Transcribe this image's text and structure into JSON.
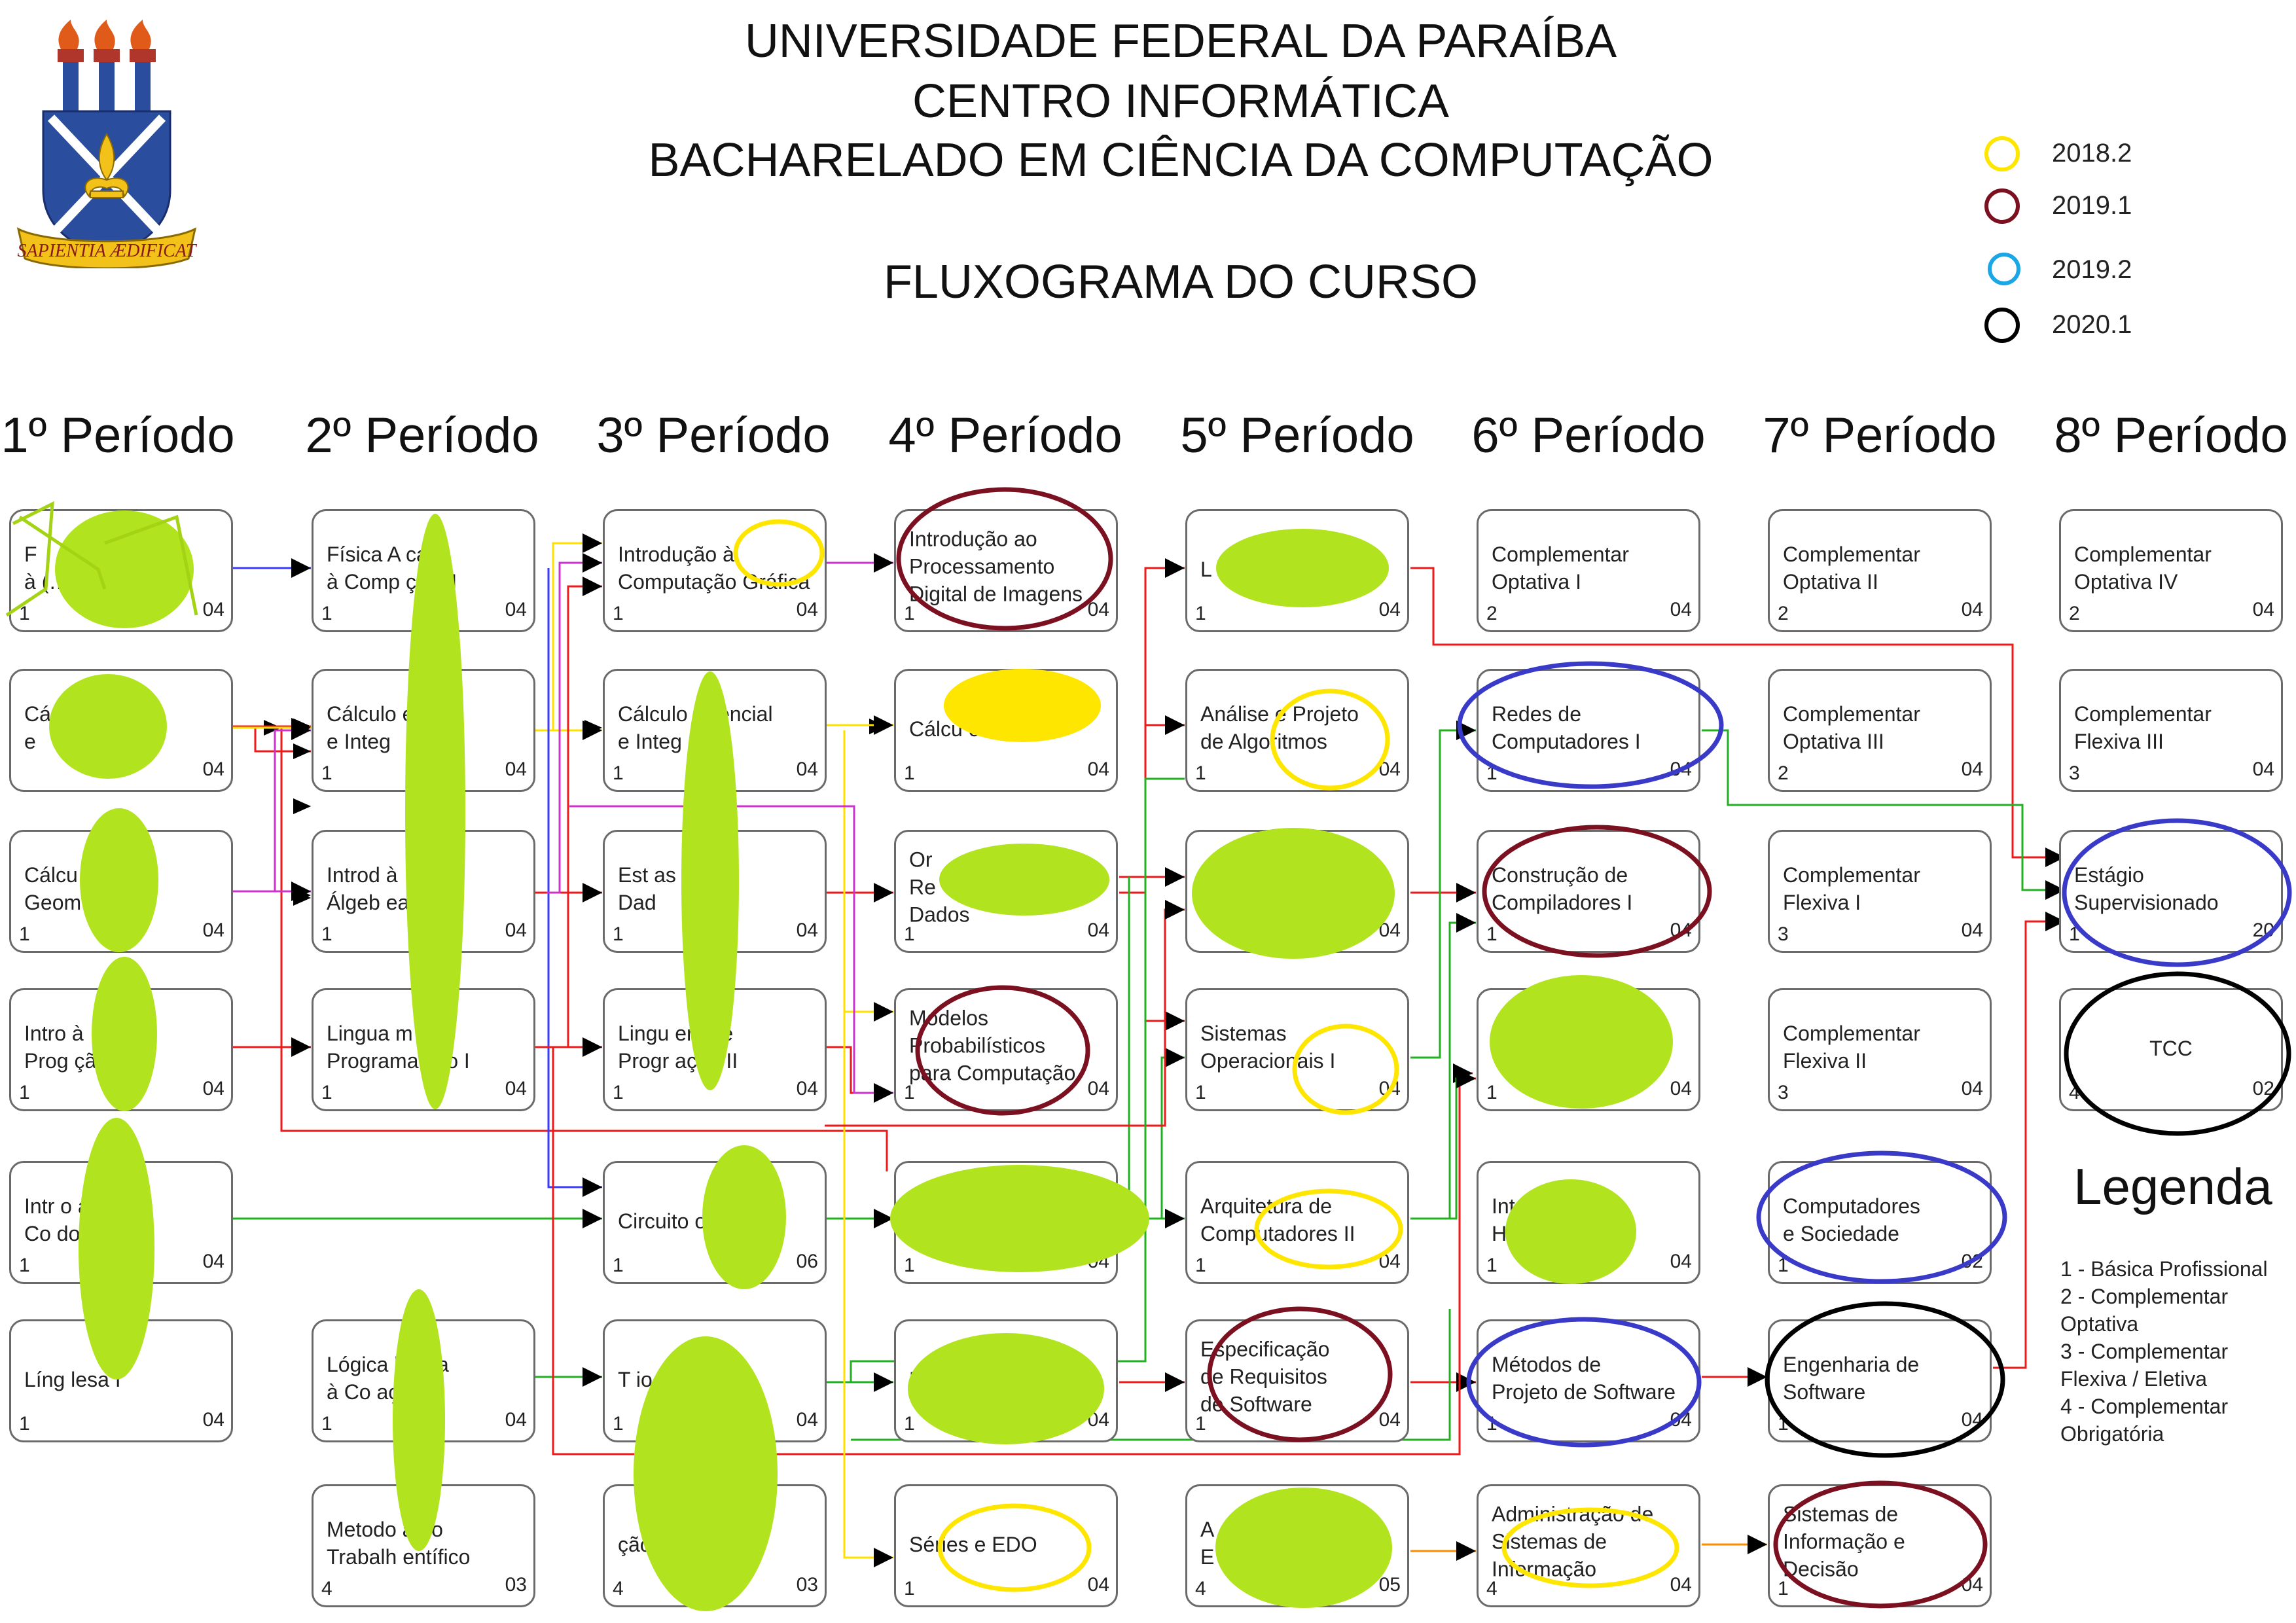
{
  "header": {
    "university": "UNIVERSIDADE FEDERAL DA PARAÍBA",
    "center": "CENTRO INFORMÁTICA",
    "course": "BACHARELADO EM CIÊNCIA DA COMPUTAÇÃO",
    "title": "FLUXOGRAMA DO CURSO",
    "seal_text": "SAPIENTIA ÆDIFICAT"
  },
  "periods": [
    "1º Período",
    "2º Período",
    "3º Período",
    "4º Período",
    "5º Período",
    "6º Período",
    "7º Período",
    "8º Período"
  ],
  "year_legend": [
    {
      "year": "2018.2",
      "color": "#ffe600"
    },
    {
      "year": "2019.1",
      "color": "#7a1020"
    },
    {
      "year": "2019.2",
      "color": "#1ba6e6"
    },
    {
      "year": "2020.1",
      "color": "#000000"
    }
  ],
  "course_boxes": {
    "p1": [
      {
        "name": "F\nà (…) I",
        "type": "1",
        "credits": "04"
      },
      {
        "name": "Cá      encial\ne",
        "type": "",
        "credits": "04"
      },
      {
        "name": "Cálcu    ial e\nGeom    nalítica",
        "type": "1",
        "credits": "04"
      },
      {
        "name": "Intro      à\nProg       ção",
        "type": "1",
        "credits": "04"
      },
      {
        "name": "Intr       o ao\nCo       dor I",
        "type": "1",
        "credits": "04"
      },
      {
        "name": "Líng      lesa I",
        "type": "1",
        "credits": "04"
      }
    ],
    "p2": [
      {
        "name": "Física A    cada\nà Comp    ção II",
        "type": "1",
        "credits": "04"
      },
      {
        "name": "Cálculo      encial\ne Integ",
        "type": "1",
        "credits": "04"
      },
      {
        "name": "Introd    à\nÁlgeb    ear",
        "type": "1",
        "credits": "04"
      },
      {
        "name": "Lingua    m de\nPrograma  ção I",
        "type": "1",
        "credits": "04"
      },
      {
        "name": "Lógica    licada\nà Co      ação",
        "type": "1",
        "credits": "04"
      },
      {
        "name": "Metodo     a do\nTrabalh    entífico",
        "type": "4",
        "credits": "03"
      }
    ],
    "p3": [
      {
        "name": "Introdução à\nComputação Gráfica",
        "type": "1",
        "credits": "04"
      },
      {
        "name": "Cálculo    ferencial\ne Integ    III",
        "type": "1",
        "credits": "04"
      },
      {
        "name": "Est     as de\nDad",
        "type": "1",
        "credits": "04"
      },
      {
        "name": "Lingu    em de\nProgr    ação II",
        "type": "1",
        "credits": "04"
      },
      {
        "name": "Circuito        os",
        "type": "1",
        "credits": "06"
      },
      {
        "name": "T               io",
        "type": "1",
        "credits": "04"
      },
      {
        "name": "             ção",
        "type": "4",
        "credits": "03"
      }
    ],
    "p4": [
      {
        "name": "Introdução ao\nProcessamento\nDigital de Imagens",
        "type": "1",
        "credits": "04"
      },
      {
        "name": "Cálcu         o",
        "type": "1",
        "credits": "04"
      },
      {
        "name": "Or\nRe\nDados",
        "type": "1",
        "credits": "04"
      },
      {
        "name": "Modelos\nProbabilísticos\npara Computação",
        "type": "1",
        "credits": "04"
      },
      {
        "name": "",
        "type": "1",
        "credits": "04"
      },
      {
        "name": "L",
        "type": "1",
        "credits": "04"
      },
      {
        "name": "Séries e EDO",
        "type": "1",
        "credits": "04"
      }
    ],
    "p5": [
      {
        "name": "L",
        "type": "1",
        "credits": "04"
      },
      {
        "name": "Análise e Projeto\nde Algoritmos",
        "type": "1",
        "credits": "04"
      },
      {
        "name": "",
        "type": "",
        "credits": "04"
      },
      {
        "name": "Sistemas\nOperacionais I",
        "type": "1",
        "credits": "04"
      },
      {
        "name": "Arquitetura de\nComputadores II",
        "type": "1",
        "credits": "04"
      },
      {
        "name": "Especificação\nde Requisitos\nde Software",
        "type": "1",
        "credits": "04"
      },
      {
        "name": "A\nE",
        "type": "4",
        "credits": "05"
      }
    ],
    "p6": [
      {
        "name": "Complementar\nOptativa I",
        "type": "2",
        "credits": "04"
      },
      {
        "name": "Redes de\nComputadores I",
        "type": "1",
        "credits": "04"
      },
      {
        "name": "Construção de\nCompiladores I",
        "type": "1",
        "credits": "04"
      },
      {
        "name": "A",
        "type": "1",
        "credits": "04"
      },
      {
        "name": "Int\nH                  a",
        "type": "1",
        "credits": "04"
      },
      {
        "name": "Métodos de\nProjeto de Software",
        "type": "1",
        "credits": "04"
      },
      {
        "name": "Administração de\nSistemas de\nInformação",
        "type": "4",
        "credits": "04"
      }
    ],
    "p7": [
      {
        "name": "Complementar\nOptativa II",
        "type": "2",
        "credits": "04"
      },
      {
        "name": "Complementar\nOptativa III",
        "type": "2",
        "credits": "04"
      },
      {
        "name": "Complementar\nFlexiva I",
        "type": "3",
        "credits": "04"
      },
      {
        "name": "Complementar\nFlexiva II",
        "type": "3",
        "credits": "04"
      },
      {
        "name": "Computadores\ne Sociedade",
        "type": "1",
        "credits": "02"
      },
      {
        "name": "Engenharia de\nSoftware",
        "type": "1",
        "credits": "04"
      },
      {
        "name": "Sistemas de\nInformação e\nDecisão",
        "type": "1",
        "credits": "04"
      }
    ],
    "p8": [
      {
        "name": "Complementar\nOptativa IV",
        "type": "2",
        "credits": "04"
      },
      {
        "name": "Complementar\nFlexiva III",
        "type": "3",
        "credits": "04"
      },
      {
        "name": "Estágio\nSupervisionado",
        "type": "1",
        "credits": "20"
      },
      {
        "name": "TCC",
        "type": "4",
        "credits": "02"
      }
    ]
  },
  "legend": {
    "title": "Legenda",
    "items": [
      "1 - Básica Profissional",
      "2 - Complementar\n      Optativa",
      "3 - Complementar\n      Flexiva / Eletiva",
      "4 - Complementar\n      Obrigatória"
    ]
  }
}
